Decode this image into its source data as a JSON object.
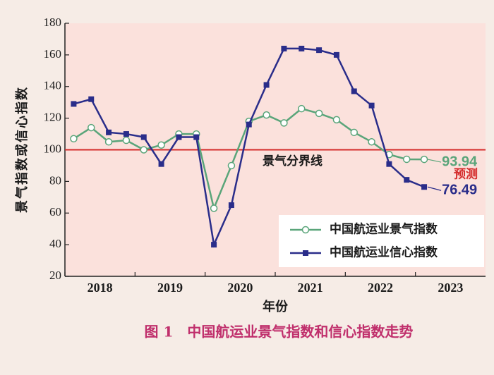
{
  "chart_data": {
    "type": "line",
    "caption": "图 1　中国航运业景气指数和信心指数走势",
    "ylabel": "景气指数或信心指数",
    "xlabel": "年份",
    "x": [
      2018.125,
      2018.375,
      2018.625,
      2018.875,
      2019.125,
      2019.375,
      2019.625,
      2019.875,
      2020.125,
      2020.375,
      2020.625,
      2020.875,
      2021.125,
      2021.375,
      2021.625,
      2021.875,
      2022.125,
      2022.375,
      2022.625,
      2022.875,
      2023.125
    ],
    "xlim": [
      2018,
      2024
    ],
    "xticks": [
      2018,
      2019,
      2020,
      2021,
      2022,
      2023
    ],
    "ylim": [
      20,
      180
    ],
    "yticks": [
      20,
      40,
      60,
      80,
      100,
      120,
      140,
      160,
      180
    ],
    "hline": {
      "value": 100,
      "label": "景气分界线",
      "color": "#d42a2a"
    },
    "forecast_label": "预测",
    "series": [
      {
        "name": "中国航运业景气指数",
        "color": "#5aa57a",
        "marker": "circle",
        "values": [
          107,
          114,
          105,
          106,
          100,
          103,
          110,
          110,
          63,
          90,
          118,
          122,
          117,
          126,
          123,
          119,
          111,
          105,
          97,
          94,
          93.94
        ]
      },
      {
        "name": "中国航运业信心指数",
        "color": "#2a2d8a",
        "marker": "square",
        "values": [
          129,
          132,
          111,
          110,
          108,
          91,
          108,
          108,
          40,
          65,
          116,
          141,
          164,
          164,
          163,
          160,
          137,
          128,
          91,
          81,
          76.49
        ]
      }
    ]
  }
}
